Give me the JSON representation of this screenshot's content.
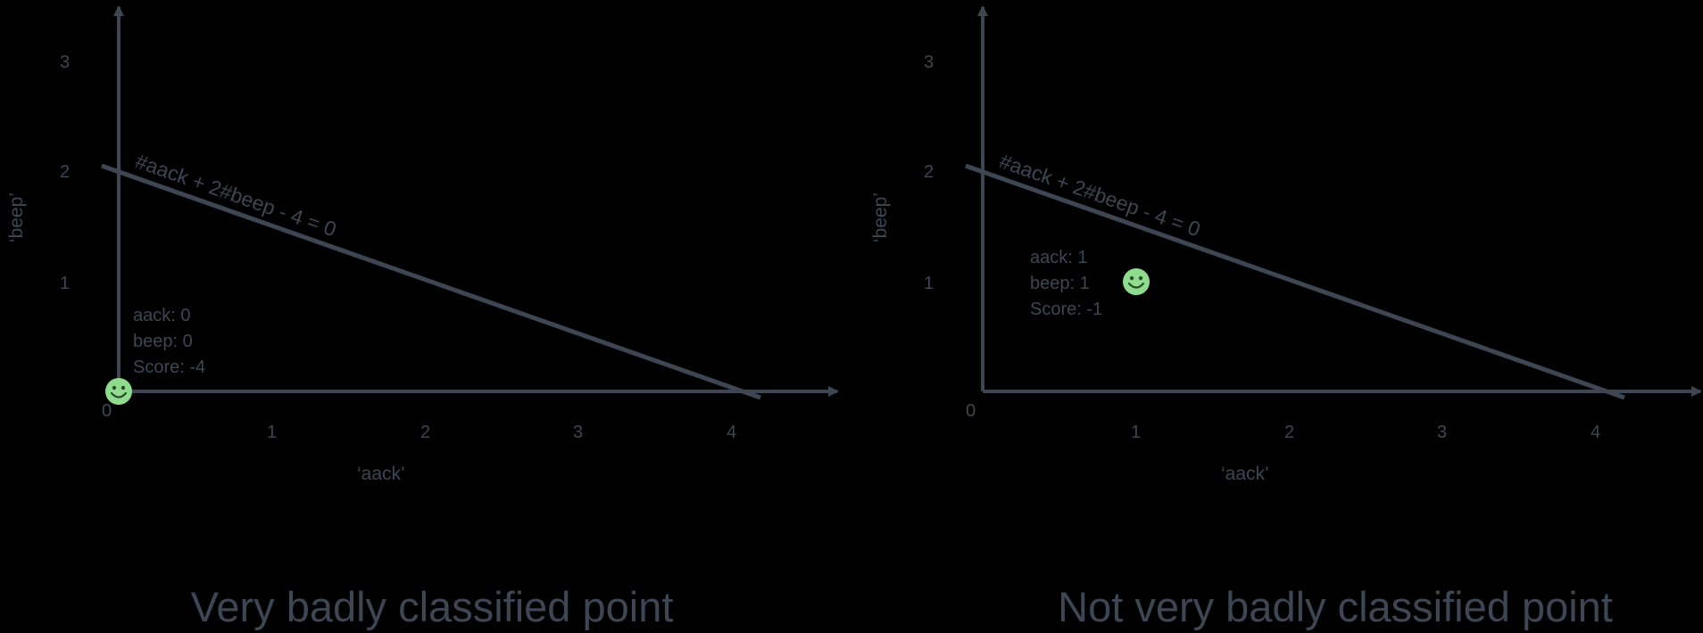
{
  "colors": {
    "ink": "#3d4652",
    "smiley": "#8fdc8f",
    "smiley_face": "#2c4a2c"
  },
  "icons": {
    "point": "smiley-face-icon"
  },
  "panels": [
    {
      "caption": "Very badly classified point",
      "x_axis_label": "‘aack’",
      "y_axis_label": "‘beep’",
      "origin_label": "0",
      "x_ticks": [
        "1",
        "2",
        "3",
        "4"
      ],
      "y_ticks": [
        "1",
        "2",
        "3"
      ],
      "equation": "#aack + 2#beep - 4 = 0",
      "point": {
        "aack": 0,
        "beep": 0
      },
      "info": [
        "aack: 0",
        "beep: 0",
        "Score: -4"
      ]
    },
    {
      "caption": "Not very badly classified point",
      "x_axis_label": "‘aack’",
      "y_axis_label": "‘beep’",
      "origin_label": "0",
      "x_ticks": [
        "1",
        "2",
        "3",
        "4"
      ],
      "y_ticks": [
        "1",
        "2",
        "3"
      ],
      "equation": "#aack + 2#beep - 4 = 0",
      "point": {
        "aack": 1,
        "beep": 1
      },
      "info": [
        "aack: 1",
        "beep: 1",
        "Score: -1"
      ]
    }
  ]
}
